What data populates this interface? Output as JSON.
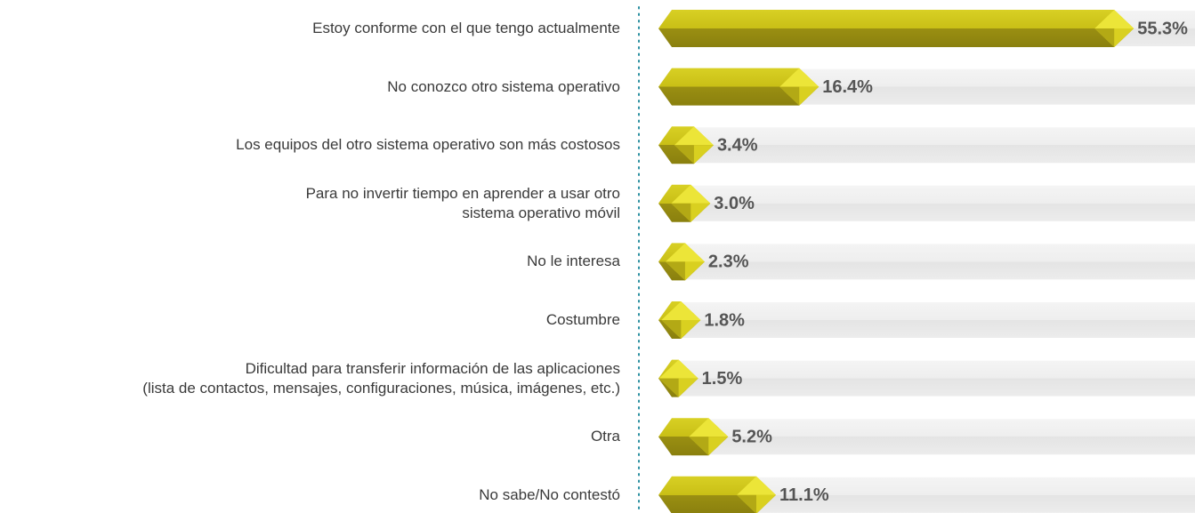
{
  "chart_data": {
    "type": "bar",
    "orientation": "horizontal",
    "categories": [
      "Estoy conforme con el que tengo actualmente",
      "No conozco otro sistema operativo",
      "Los equipos del otro sistema operativo son más costosos",
      "Para no invertir tiempo en aprender a usar otro\nsistema operativo móvil",
      "No le interesa",
      "Costumbre",
      "Dificultad para transferir información de las aplicaciones\n(lista de contactos, mensajes, configuraciones, música, imágenes, etc.)",
      "Otra",
      "No sabe/No contestó"
    ],
    "values": [
      55.3,
      16.4,
      3.4,
      3.0,
      2.3,
      1.8,
      1.5,
      5.2,
      11.1
    ],
    "value_labels": [
      "55.3%",
      "16.4%",
      "3.4%",
      "3.0%",
      "2.3%",
      "1.8%",
      "1.5%",
      "5.2%",
      "11.1%"
    ],
    "color": "#d2c91c"
  }
}
